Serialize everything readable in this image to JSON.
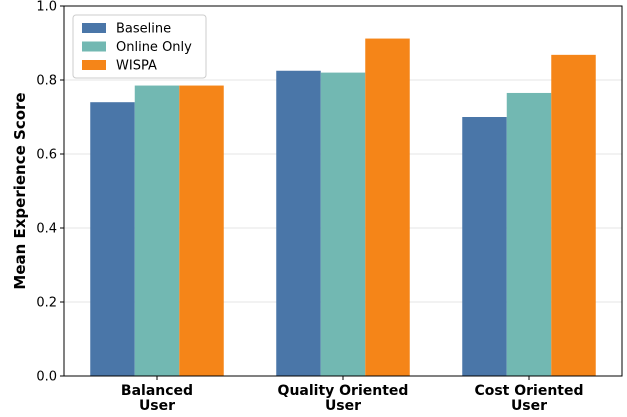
{
  "chart_data": {
    "type": "bar",
    "title": "",
    "xlabel": "",
    "ylabel": "Mean Experience Score",
    "categories": [
      [
        "Balanced",
        "User"
      ],
      [
        "Quality Oriented",
        "User"
      ],
      [
        "Cost Oriented",
        "User"
      ]
    ],
    "series": [
      {
        "name": "Baseline",
        "color": "#4a76a8",
        "values": [
          0.74,
          0.825,
          0.7
        ]
      },
      {
        "name": "Online Only",
        "color": "#72b8b2",
        "values": [
          0.785,
          0.82,
          0.765
        ]
      },
      {
        "name": "WISPA",
        "color": "#f58518",
        "values": [
          0.785,
          0.912,
          0.868
        ]
      }
    ],
    "ylim": [
      0,
      1.0
    ],
    "yticks": [
      "0.0",
      "0.2",
      "0.4",
      "0.6",
      "0.8",
      "1.0"
    ],
    "grid": true,
    "legend_position": "top-left"
  }
}
